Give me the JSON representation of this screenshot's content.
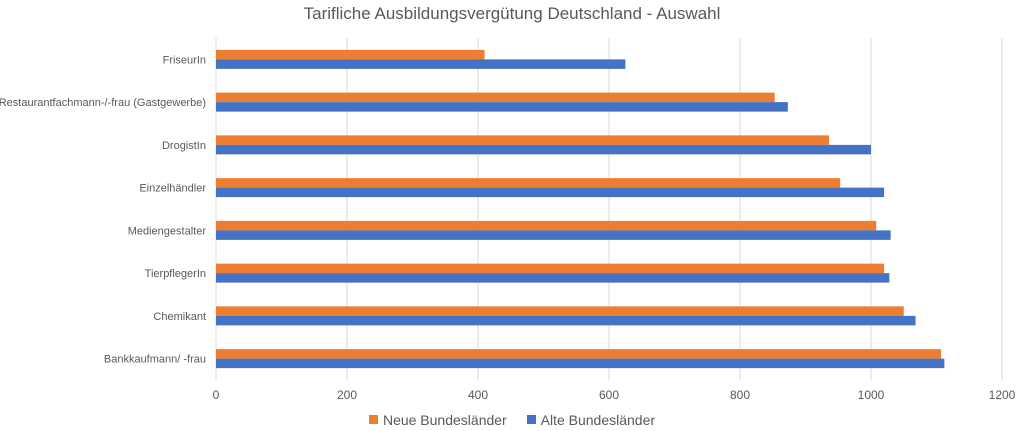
{
  "colors": {
    "neue": "#ED7D31",
    "alte": "#4472C4",
    "grid": "#D9D9D9",
    "text": "#595959"
  },
  "chart_data": {
    "type": "bar",
    "orientation": "horizontal",
    "title": "Tarifliche Ausbildungsvergütung Deutschland - Auswahl",
    "categories": [
      "FriseurIn",
      "Restaurantfachmann-/-frau  (Gastgewerbe)",
      "DrogistIn",
      "Einzelhändler",
      "Mediengestalter",
      "TierpflegerIn",
      "Chemikant",
      "Bankkaufmann/ -frau"
    ],
    "series": [
      {
        "name": "Neue Bundesländer",
        "color": "#ED7D31",
        "values": [
          410,
          853,
          936,
          953,
          1008,
          1020,
          1050,
          1107
        ]
      },
      {
        "name": "Alte Bundesländer",
        "color": "#4472C4",
        "values": [
          625,
          873,
          1000,
          1020,
          1030,
          1028,
          1068,
          1112
        ]
      }
    ],
    "xlim": [
      0,
      1200
    ],
    "xticks": [
      "0",
      "200",
      "400",
      "600",
      "800",
      "1000",
      "1200"
    ],
    "grid": true,
    "legend_position": "bottom"
  }
}
